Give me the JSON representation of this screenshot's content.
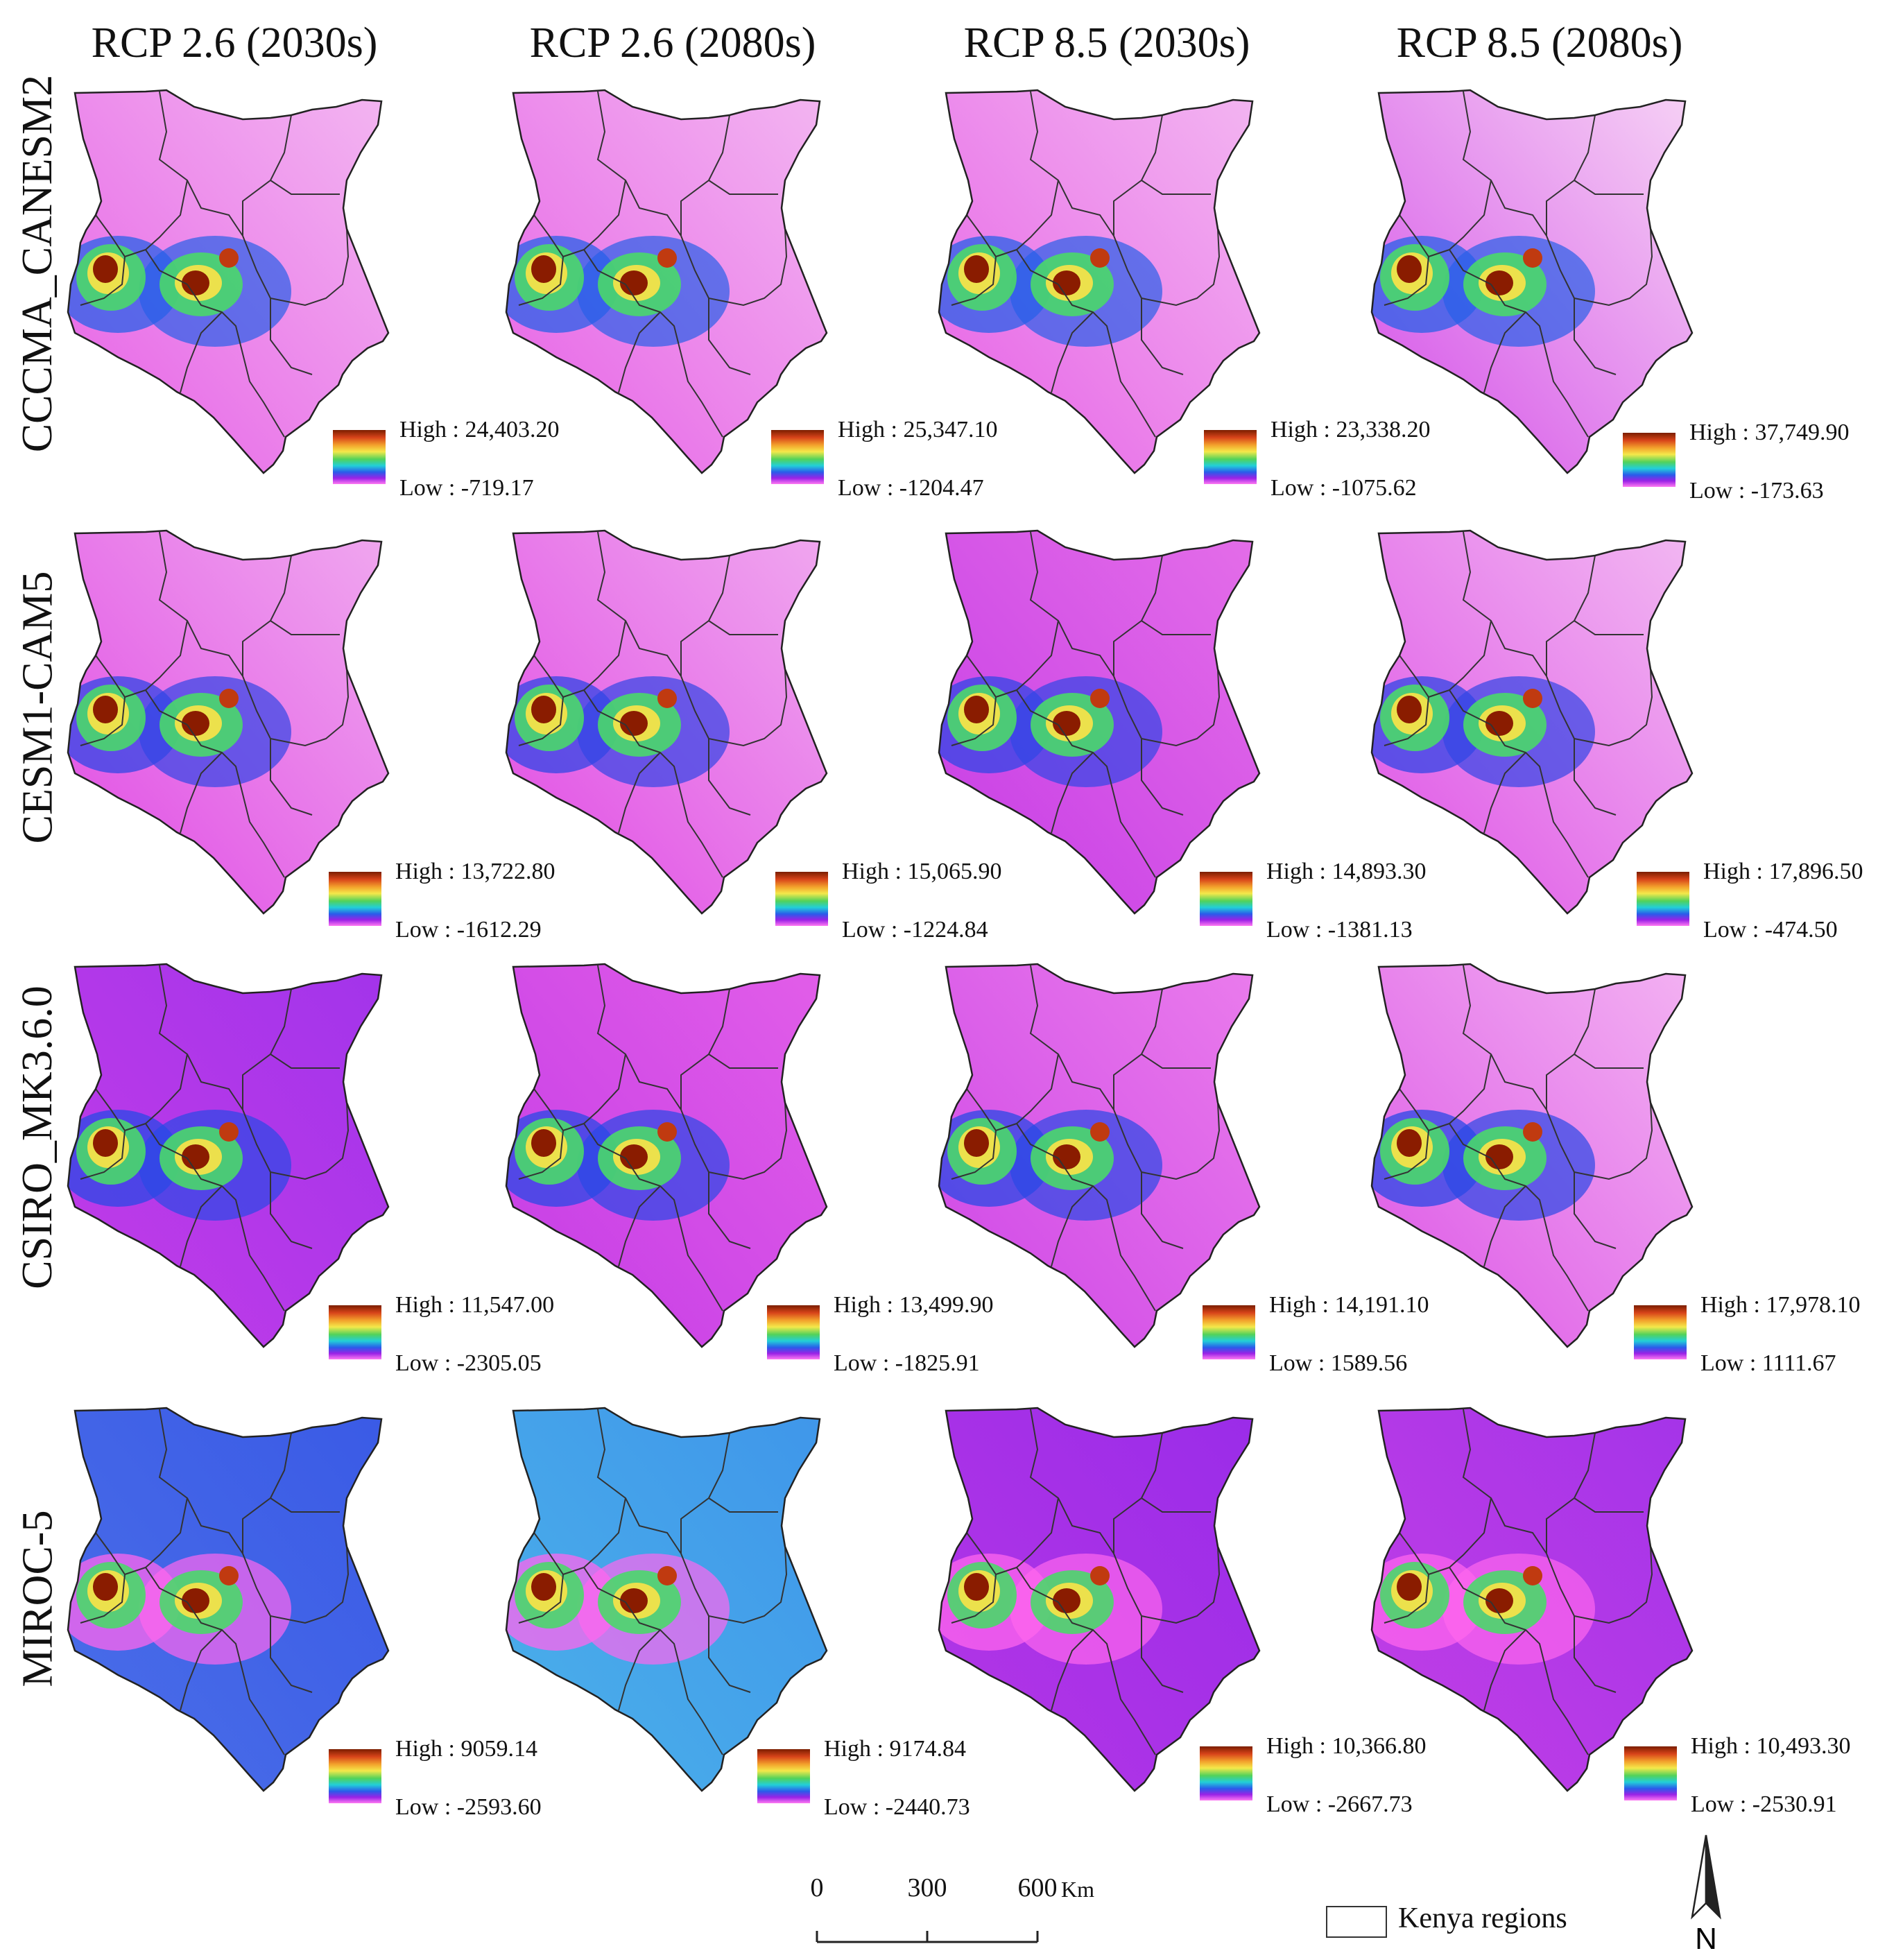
{
  "column_headers": [
    "RCP 2.6 (2030s)",
    "RCP 2.6 (2080s)",
    "RCP 8.5 (2030s)",
    "RCP 8.5 (2080s)"
  ],
  "row_labels": [
    "CCCMA_CANESM2",
    "CESM1-CAM5",
    "CSIRO_MK3.6.0",
    "MIROC-5"
  ],
  "legends": [
    [
      {
        "high": "High : 24,403.20",
        "low": "Low : -719.17"
      },
      {
        "high": "High : 25,347.10",
        "low": "Low : -1204.47"
      },
      {
        "high": "High : 23,338.20",
        "low": "Low : -1075.62"
      },
      {
        "high": "High : 37,749.90",
        "low": "Low : -173.63"
      }
    ],
    [
      {
        "high": "High : 13,722.80",
        "low": "Low : -1612.29"
      },
      {
        "high": "High : 15,065.90",
        "low": "Low : -1224.84"
      },
      {
        "high": "High : 14,893.30",
        "low": "Low : -1381.13"
      },
      {
        "high": "High : 17,896.50",
        "low": "Low : -474.50"
      }
    ],
    [
      {
        "high": "High : 11,547.00",
        "low": "Low : -2305.05"
      },
      {
        "high": "High : 13,499.90",
        "low": "Low : -1825.91"
      },
      {
        "high": "High : 14,191.10",
        "low": "Low : 1589.56"
      },
      {
        "high": "High : 17,978.10",
        "low": "Low : 1111.67"
      }
    ],
    [
      {
        "high": "High : 9059.14",
        "low": "Low : -2593.60"
      },
      {
        "high": "High : 9174.84",
        "low": "Low : -2440.73"
      },
      {
        "high": "High : 10,366.80",
        "low": "Low : -2667.73"
      },
      {
        "high": "High : 10,493.30",
        "low": "Low : -2530.91"
      }
    ]
  ],
  "panel_styles": [
    [
      {
        "bg": [
          "#f3b6f1",
          "#e660e6"
        ],
        "blob": "#2860e8"
      },
      {
        "bg": [
          "#f3b6f1",
          "#e660e6"
        ],
        "blob": "#2860e8"
      },
      {
        "bg": [
          "#f3b6f1",
          "#e660e6"
        ],
        "blob": "#2860e8"
      },
      {
        "bg": [
          "#f6d2f5",
          "#d44ee8"
        ],
        "blob": "#2860e8"
      }
    ],
    [
      {
        "bg": [
          "#f0a8ef",
          "#e04ae4"
        ],
        "blob": "#3246e6"
      },
      {
        "bg": [
          "#f0a8ef",
          "#e04ae4"
        ],
        "blob": "#3246e6"
      },
      {
        "bg": [
          "#e46ee8",
          "#c63ce6"
        ],
        "blob": "#3246e6"
      },
      {
        "bg": [
          "#f2b8f2",
          "#de52e6"
        ],
        "blob": "#3246e6"
      }
    ],
    [
      {
        "bg": [
          "#a234ea",
          "#c23ce8"
        ],
        "blob": "#2a48e6"
      },
      {
        "bg": [
          "#e25ee8",
          "#c43ce6"
        ],
        "blob": "#2a48e6"
      },
      {
        "bg": [
          "#ea7cec",
          "#ce46e6"
        ],
        "blob": "#2a48e6"
      },
      {
        "bg": [
          "#f3b2f2",
          "#dc54e6"
        ],
        "blob": "#2a48e6"
      }
    ],
    [
      {
        "bg": [
          "#3a5ae6",
          "#4a6ee8"
        ],
        "blob": "#ff66ee"
      },
      {
        "bg": [
          "#3f96ea",
          "#4bb0ea"
        ],
        "blob": "#ff66ee"
      },
      {
        "bg": [
          "#9a2ce8",
          "#b436e6"
        ],
        "blob": "#ff66ee"
      },
      {
        "bg": [
          "#a434e8",
          "#c23ee6"
        ],
        "blob": "#ff66ee"
      }
    ]
  ],
  "scale_bar": {
    "ticks": [
      "0",
      "300",
      "600"
    ],
    "unit": "Km"
  },
  "region_legend_label": "Kenya regions",
  "north_label": "N"
}
